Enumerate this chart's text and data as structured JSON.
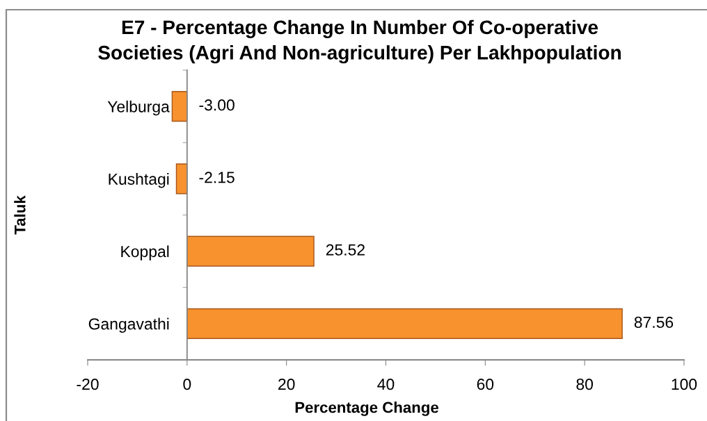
{
  "chart_data": {
    "type": "bar",
    "orientation": "horizontal",
    "title": "E7 - Percentage Change In Number Of Co-operative\nSocieties (Agri And Non-agriculture) Per Lakhpopulation",
    "xlabel": "Percentage Change",
    "ylabel": "Taluk",
    "categories": [
      "Yelburga",
      "Kushtagi",
      "Koppal",
      "Gangavathi"
    ],
    "values": [
      -3.0,
      -2.15,
      25.52,
      87.56
    ],
    "value_labels": [
      "-3.00",
      "-2.15",
      "25.52",
      "87.56"
    ],
    "color": "#f7922e",
    "xlim": [
      -20,
      100
    ],
    "xticks": [
      -20,
      0,
      20,
      40,
      60,
      80,
      100
    ]
  }
}
